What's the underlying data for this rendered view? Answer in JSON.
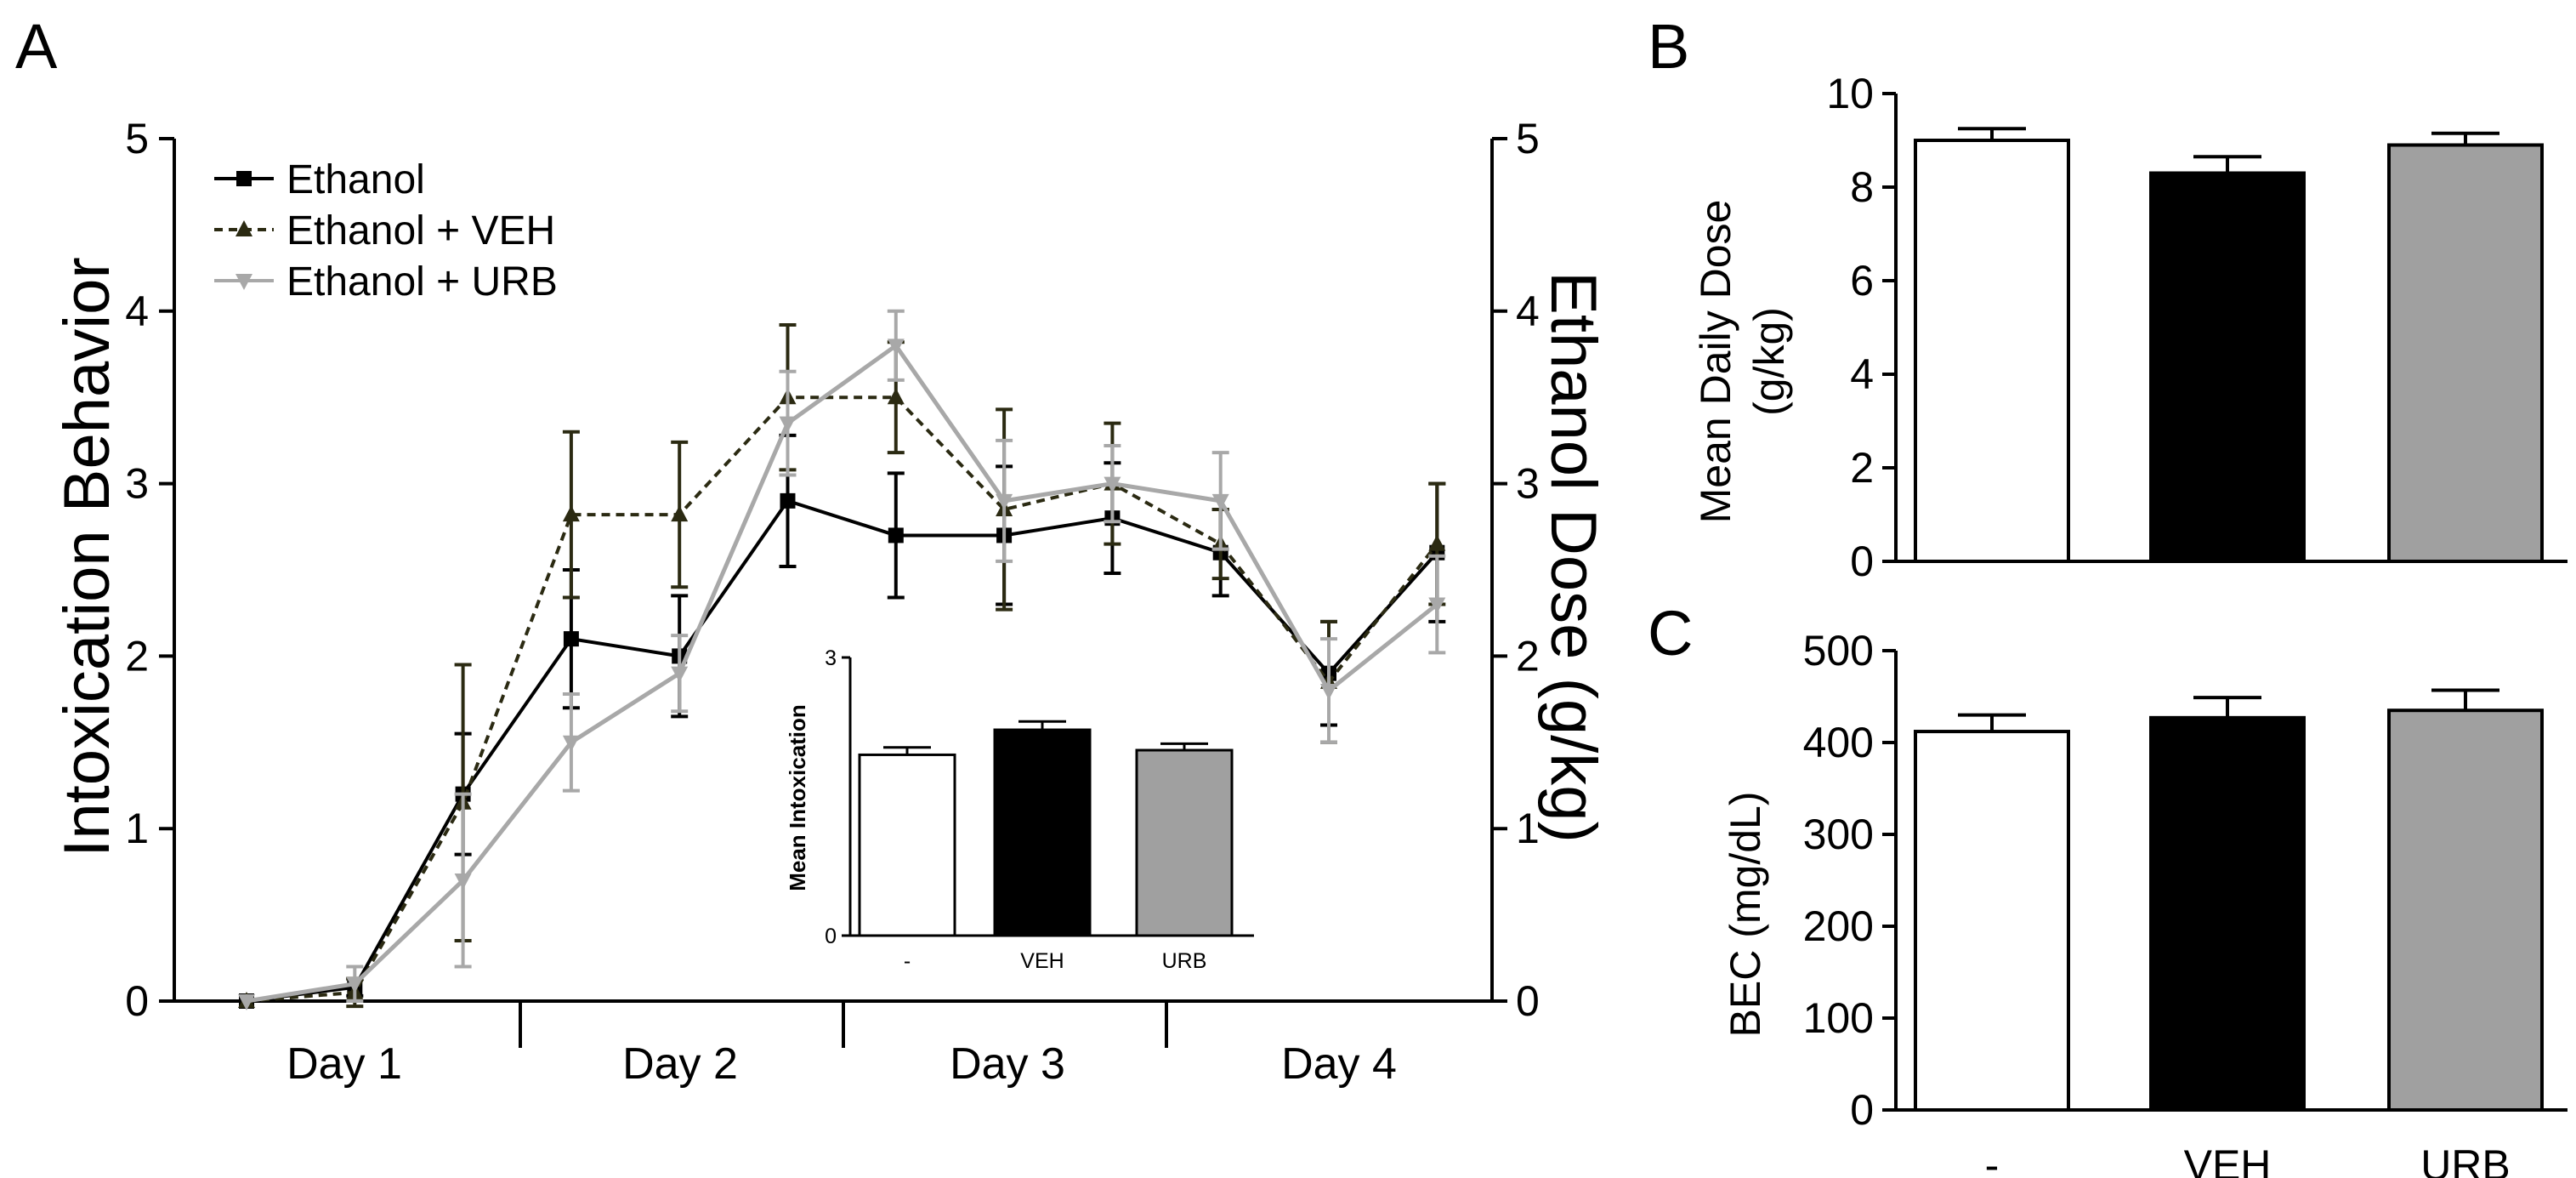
{
  "panel_labels": {
    "a": "A",
    "b": "B",
    "c": "C"
  },
  "chart_data": [
    {
      "id": "A",
      "type": "line",
      "ylabel_left": "Intoxication Behavior",
      "ylabel_right": "Ethanol Dose (g/kg)",
      "ylim_left": [
        0,
        5
      ],
      "ylim_right": [
        5,
        0
      ],
      "yticks_left": [
        "0",
        "1",
        "2",
        "3",
        "4",
        "5"
      ],
      "yticks_right": [
        "5",
        "4",
        "3",
        "2",
        "1",
        "0"
      ],
      "day_labels": [
        "Day 1",
        "Day 2",
        "Day 3",
        "Day 4"
      ],
      "x": [
        1,
        2,
        3,
        4,
        5,
        6,
        7,
        8,
        9,
        10,
        11,
        12
      ],
      "series": [
        {
          "name": "Ethanol",
          "color": "#000000",
          "marker": "square",
          "dash": "",
          "values": [
            0,
            0.08,
            1.2,
            2.1,
            2.0,
            2.9,
            2.7,
            2.7,
            2.8,
            2.6,
            1.9,
            2.6
          ],
          "errors": [
            0,
            0.05,
            0.35,
            0.4,
            0.35,
            0.38,
            0.36,
            0.4,
            0.32,
            0.25,
            0.3,
            0.4
          ]
        },
        {
          "name": "Ethanol + VEH",
          "color": "#2b2a12",
          "marker": "triangle-up",
          "dash": "10,7",
          "values": [
            0,
            0.05,
            1.15,
            2.82,
            2.82,
            3.5,
            3.5,
            2.85,
            3.0,
            2.65,
            1.85,
            2.65
          ],
          "errors": [
            0,
            0.08,
            0.8,
            0.48,
            0.42,
            0.42,
            0.32,
            0.58,
            0.35,
            0.2,
            0.35,
            0.35
          ]
        },
        {
          "name": "Ethanol + URB",
          "color": "#a8a8a8",
          "marker": "triangle-down",
          "dash": "",
          "values": [
            0,
            0.1,
            0.7,
            1.5,
            1.9,
            3.35,
            3.8,
            2.9,
            3.0,
            2.9,
            1.8,
            2.3
          ],
          "errors": [
            0,
            0.1,
            0.5,
            0.28,
            0.22,
            0.3,
            0.2,
            0.35,
            0.22,
            0.28,
            0.3,
            0.28
          ]
        }
      ]
    },
    {
      "id": "A-inset",
      "type": "bar",
      "ylabel": "Mean Intoxication",
      "ylim": [
        0,
        3
      ],
      "yticks": [
        "0",
        "3"
      ],
      "categories": [
        "-",
        "VEH",
        "URB"
      ],
      "values": [
        1.95,
        2.22,
        2.0
      ],
      "errors": [
        0.08,
        0.09,
        0.07
      ],
      "colors": [
        "#ffffff",
        "#000000",
        "#a0a0a0"
      ]
    },
    {
      "id": "B",
      "type": "bar",
      "ylabel": "Mean Daily Dose",
      "ylabel2": "(g/kg)",
      "ylim": [
        0,
        10
      ],
      "yticks": [
        "0",
        "2",
        "4",
        "6",
        "8",
        "10"
      ],
      "categories": [
        "-",
        "VEH",
        "URB"
      ],
      "values": [
        9.0,
        8.3,
        8.9
      ],
      "errors": [
        0.25,
        0.35,
        0.25
      ],
      "colors": [
        "#ffffff",
        "#000000",
        "#a0a0a0"
      ]
    },
    {
      "id": "C",
      "type": "bar",
      "ylabel": "BEC (mg/dL)",
      "ylim": [
        0,
        500
      ],
      "yticks": [
        "0",
        "100",
        "200",
        "300",
        "400",
        "500"
      ],
      "categories": [
        "-",
        "VEH",
        "URB"
      ],
      "values": [
        412,
        427,
        435
      ],
      "errors": [
        18,
        22,
        22
      ],
      "colors": [
        "#ffffff",
        "#000000",
        "#a0a0a0"
      ]
    }
  ]
}
